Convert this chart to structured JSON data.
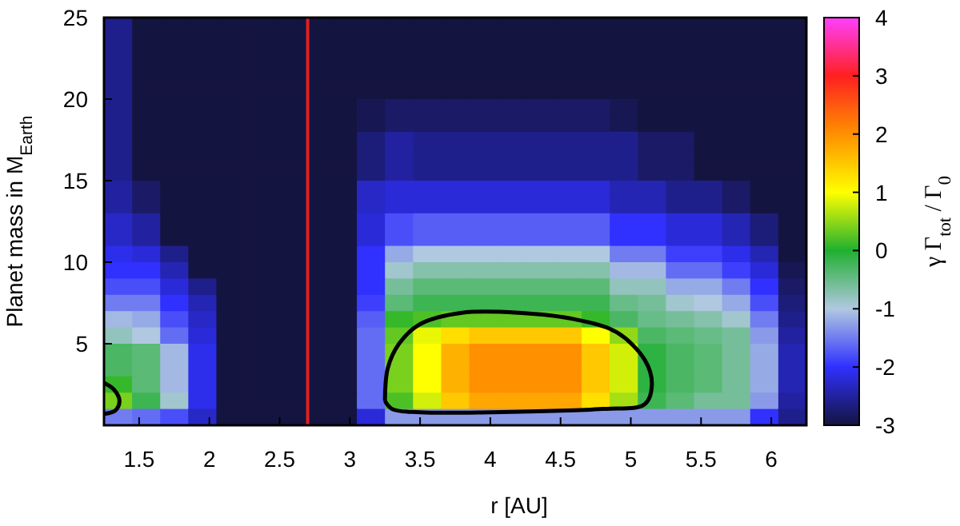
{
  "chart_data": {
    "type": "heatmap",
    "xlabel": "r [AU]",
    "ylabel": "Planet mass in M$_{Earth}$",
    "clabel": "γ Γ$_{tot}$ / Γ$_{0}$",
    "xlim": [
      1.25,
      6.25
    ],
    "ylim": [
      0,
      25
    ],
    "xticks": [
      1.5,
      2,
      2.5,
      3,
      3.5,
      4,
      4.5,
      5,
      5.5,
      6
    ],
    "yticks": [
      5,
      10,
      15,
      20,
      25
    ],
    "clim": [
      -3,
      4
    ],
    "cticks": [
      -3,
      -2,
      -1,
      0,
      1,
      2,
      3,
      4
    ],
    "colors": [
      "#141440",
      "#3030ff",
      "#b0c8e0",
      "#20b030",
      "#ffff00",
      "#ff9000",
      "#ff2020",
      "#ff40ff"
    ],
    "cells": [
      [
        -2.6,
        -3,
        -3,
        -3,
        -3,
        -3,
        -3,
        -3,
        -3,
        -3,
        -3,
        -3,
        -3,
        -3,
        -3,
        -3,
        -3,
        -3,
        -3,
        -3,
        -3,
        -3,
        -3,
        -3,
        -3
      ],
      [
        -2.6,
        -3,
        -3,
        -3,
        -3,
        -3,
        -3,
        -3,
        -3,
        -3,
        -3,
        -3,
        -3,
        -3,
        -3,
        -3,
        -3,
        -3,
        -3,
        -3,
        -3,
        -3,
        -3,
        -3,
        -3
      ],
      [
        -2.6,
        -3,
        -3,
        -3,
        -3,
        -3,
        -3,
        -3,
        -3,
        -3,
        -3,
        -3,
        -3,
        -3,
        -3,
        -3,
        -3,
        -3,
        -3,
        -3,
        -3,
        -3,
        -3,
        -3,
        -3
      ],
      [
        -2.6,
        -3,
        -3,
        -3,
        -3,
        -3,
        -3,
        -3,
        -3,
        -3,
        -3,
        -3,
        -3,
        -3,
        -3,
        -3,
        -3,
        -3,
        -3,
        -3,
        -3,
        -3,
        -3,
        -3,
        -3
      ],
      [
        -2.6,
        -3,
        -3,
        -3,
        -3,
        -3,
        -3,
        -3,
        -3,
        -3,
        -3,
        -3,
        -3,
        -3,
        -3,
        -3,
        -3,
        -3,
        -3,
        -3,
        -3,
        -3,
        -3,
        -3,
        -3
      ],
      [
        -2.6,
        -3,
        -3,
        -3,
        -3,
        -3,
        -3,
        -3,
        -3,
        -2.9,
        -2.8,
        -2.8,
        -2.8,
        -2.8,
        -2.8,
        -2.8,
        -2.8,
        -2.8,
        -2.9,
        -3,
        -3,
        -3,
        -3,
        -3,
        -3
      ],
      [
        -2.6,
        -3,
        -3,
        -3,
        -3,
        -3,
        -3,
        -3,
        -3,
        -2.9,
        -2.8,
        -2.8,
        -2.8,
        -2.8,
        -2.8,
        -2.8,
        -2.8,
        -2.8,
        -2.9,
        -3,
        -3,
        -3,
        -3,
        -3,
        -3
      ],
      [
        -2.6,
        -3,
        -3,
        -3,
        -3,
        -3,
        -3,
        -3,
        -3,
        -2.7,
        -2.5,
        -2.6,
        -2.6,
        -2.6,
        -2.6,
        -2.6,
        -2.6,
        -2.6,
        -2.6,
        -2.8,
        -2.8,
        -3,
        -3,
        -3,
        -3
      ],
      [
        -2.6,
        -3,
        -3,
        -3,
        -3,
        -3,
        -3,
        -3,
        -3,
        -2.7,
        -2.5,
        -2.6,
        -2.6,
        -2.6,
        -2.6,
        -2.6,
        -2.6,
        -2.6,
        -2.6,
        -2.8,
        -2.8,
        -3,
        -3,
        -3,
        -3
      ],
      [
        -2.6,
        -3,
        -3,
        -3,
        -3,
        -3,
        -3,
        -3,
        -3,
        -2.7,
        -2.5,
        -2.6,
        -2.6,
        -2.6,
        -2.6,
        -2.6,
        -2.6,
        -2.6,
        -2.6,
        -2.8,
        -2.8,
        -3,
        -3,
        -3,
        -3
      ],
      [
        -2.5,
        -2.8,
        -3,
        -3,
        -3,
        -3,
        -3,
        -3,
        -3,
        -2.3,
        -2.2,
        -2.2,
        -2.2,
        -2.2,
        -2.2,
        -2.2,
        -2.2,
        -2.2,
        -2.4,
        -2.4,
        -2.6,
        -2.6,
        -2.8,
        -3,
        -3
      ],
      [
        -2.5,
        -2.8,
        -3,
        -3,
        -3,
        -3,
        -3,
        -3,
        -3,
        -2.3,
        -2.2,
        -2.2,
        -2.2,
        -2.2,
        -2.2,
        -2.2,
        -2.2,
        -2.2,
        -2.4,
        -2.4,
        -2.6,
        -2.6,
        -2.8,
        -3,
        -3
      ],
      [
        -2.3,
        -2.5,
        -3,
        -3,
        -3,
        -3,
        -3,
        -3,
        -3,
        -2.2,
        -1.8,
        -1.7,
        -1.7,
        -1.7,
        -1.7,
        -1.7,
        -1.7,
        -1.7,
        -2,
        -2,
        -2.2,
        -2.2,
        -2.4,
        -2.7,
        -3
      ],
      [
        -2.3,
        -2.5,
        -3,
        -3,
        -3,
        -3,
        -3,
        -3,
        -3,
        -2.2,
        -1.8,
        -1.7,
        -1.7,
        -1.7,
        -1.7,
        -1.7,
        -1.7,
        -1.7,
        -2,
        -2,
        -2.2,
        -2.2,
        -2.4,
        -2.7,
        -3
      ],
      [
        -2.1,
        -2.2,
        -2.6,
        -3,
        -3,
        -3,
        -3,
        -3,
        -3,
        -2,
        -1.2,
        -1,
        -1,
        -1,
        -1,
        -1,
        -1,
        -1,
        -1.5,
        -1.5,
        -1.9,
        -1.9,
        -2.1,
        -2.4,
        -3
      ],
      [
        -2,
        -2,
        -2.4,
        -3,
        -3,
        -3,
        -3,
        -3,
        -3,
        -2,
        -0.9,
        -0.7,
        -0.7,
        -0.7,
        -0.7,
        -0.7,
        -0.7,
        -0.7,
        -1.1,
        -1.1,
        -1.6,
        -1.6,
        -1.9,
        -2.2,
        -2.9
      ],
      [
        -1.8,
        -1.8,
        -2.2,
        -2.6,
        -3,
        -3,
        -3,
        -3,
        -3,
        -2,
        -0.6,
        -0.4,
        -0.4,
        -0.4,
        -0.4,
        -0.4,
        -0.4,
        -0.4,
        -0.8,
        -0.8,
        -1.2,
        -1.2,
        -1.5,
        -2,
        -2.8
      ],
      [
        -1.5,
        -1.5,
        -2,
        -2.4,
        -3,
        -3,
        -3,
        -3,
        -3,
        -1.9,
        -0.4,
        -0.2,
        -0.2,
        -0.2,
        -0.2,
        -0.2,
        -0.2,
        -0.2,
        -0.5,
        -0.6,
        -0.9,
        -1,
        -1.2,
        -1.8,
        -2.7
      ],
      [
        -1.1,
        -1.2,
        -1.8,
        -2.3,
        -3,
        -3,
        -3,
        -3,
        -3,
        -1.7,
        0.1,
        0.2,
        0.3,
        0.3,
        0.3,
        0.3,
        0.3,
        0.1,
        -0.3,
        -0.5,
        -0.6,
        -0.7,
        -0.9,
        -1.5,
        -2.6
      ],
      [
        -0.8,
        -1,
        -1.6,
        -2.2,
        -3,
        -3,
        -3,
        -3,
        -3,
        -1.6,
        0.3,
        0.9,
        1.3,
        1.5,
        1.5,
        1.5,
        1.5,
        1,
        0.5,
        -0.3,
        -0.4,
        -0.5,
        -0.6,
        -1.3,
        -2.5
      ],
      [
        -0.3,
        -0.4,
        -1.1,
        -2.1,
        -3,
        -3,
        -3,
        -3,
        -3,
        -1.6,
        0.4,
        1,
        1.7,
        2,
        2,
        2,
        2,
        1.5,
        0.8,
        -0.1,
        -0.3,
        -0.4,
        -0.6,
        -1.2,
        -2.4
      ],
      [
        -0.3,
        -0.4,
        -1.1,
        -2.1,
        -3,
        -3,
        -3,
        -3,
        -3,
        -1.6,
        0.4,
        1,
        1.7,
        2,
        2,
        2,
        2,
        1.5,
        0.8,
        -0.1,
        -0.3,
        -0.4,
        -0.6,
        -1.2,
        -2.4
      ],
      [
        0.1,
        -0.4,
        -1.1,
        -2.1,
        -3,
        -3,
        -3,
        -3,
        -3,
        -1.6,
        0.4,
        1,
        1.7,
        2,
        2,
        2,
        2,
        1.5,
        0.8,
        -0.1,
        -0.3,
        -0.4,
        -0.6,
        -1.2,
        -2.4
      ],
      [
        0.4,
        -0.2,
        -0.9,
        -2.1,
        -3,
        -3,
        -3,
        -3,
        -3,
        -1.6,
        0.2,
        0.8,
        1.5,
        1.8,
        1.8,
        1.8,
        1.8,
        1.3,
        0.6,
        -0.2,
        -0.4,
        -0.6,
        -0.6,
        -1.3,
        -2.5
      ],
      [
        -1.5,
        -1.6,
        -1.8,
        -2.3,
        -3,
        -3,
        -3,
        -3,
        -3,
        -2.2,
        -1.3,
        -1.3,
        -1.3,
        -1.3,
        -1.3,
        -1.3,
        -1.3,
        -1.3,
        -1.3,
        -1.3,
        -1.3,
        -1.3,
        -1.3,
        -2,
        -2.6
      ]
    ],
    "ref_lines": [
      {
        "axis": "x",
        "value": 2.7,
        "color": "#e0201c"
      }
    ]
  }
}
